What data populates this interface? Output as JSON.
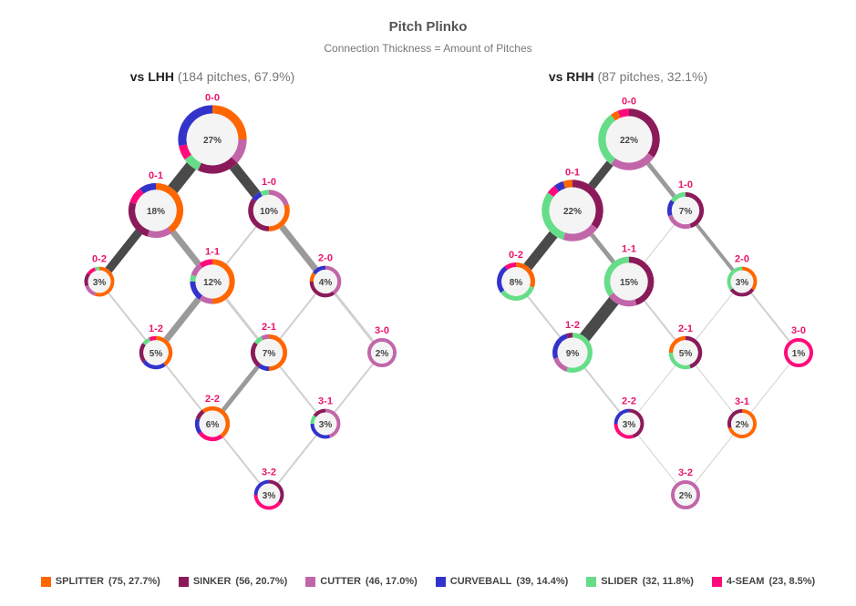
{
  "chart_data": {
    "type": "plinko-network",
    "title": "Pitch Plinko",
    "subtitle": "Connection Thickness = Amount of Pitches",
    "pitch_types": [
      {
        "name": "SPLITTER",
        "color": "#ff6600",
        "stat": "(75, 27.7%)"
      },
      {
        "name": "SINKER",
        "color": "#8b1a5a",
        "stat": "(56, 20.7%)"
      },
      {
        "name": "CUTTER",
        "color": "#c266aa",
        "stat": "(46, 17.0%)"
      },
      {
        "name": "CURVEBALL",
        "color": "#3333cc",
        "stat": "(39, 14.4%)"
      },
      {
        "name": "SLIDER",
        "color": "#66dd88",
        "stat": "(32, 11.8%)"
      },
      {
        "name": "4-SEAM",
        "color": "#ff0a7a",
        "stat": "(23, 8.5%)"
      }
    ],
    "panels": [
      {
        "label": "vs LHH",
        "detail": "(184 pitches, 67.9%)",
        "nodes": [
          {
            "count": "0-0",
            "pct": 27,
            "label": "27%",
            "mix": {
              "SPLITTER": 25,
              "CUTTER": 12,
              "SINKER": 20,
              "SLIDER": 8,
              "4-SEAM": 7,
              "CURVEBALL": 28
            }
          },
          {
            "count": "0-1",
            "pct": 18,
            "label": "18%",
            "mix": {
              "SPLITTER": 40,
              "CUTTER": 15,
              "SINKER": 25,
              "4-SEAM": 10,
              "CURVEBALL": 10
            }
          },
          {
            "count": "1-0",
            "pct": 10,
            "label": "10%",
            "mix": {
              "CUTTER": 20,
              "SPLITTER": 30,
              "SINKER": 35,
              "CURVEBALL": 8,
              "SLIDER": 7
            }
          },
          {
            "count": "0-2",
            "pct": 3,
            "label": "3%",
            "mix": {
              "SPLITTER": 55,
              "CUTTER": 15,
              "SINKER": 15,
              "4-SEAM": 10,
              "SLIDER": 5
            }
          },
          {
            "count": "1-1",
            "pct": 12,
            "label": "12%",
            "mix": {
              "SPLITTER": 50,
              "CUTTER": 10,
              "CURVEBALL": 15,
              "SLIDER": 5,
              "CUTTER2": 10,
              "4-SEAM": 10
            }
          },
          {
            "count": "2-0",
            "pct": 4,
            "label": "4%",
            "mix": {
              "CUTTER": 40,
              "SINKER": 35,
              "SPLITTER": 10,
              "CURVEBALL": 15
            }
          },
          {
            "count": "1-2",
            "pct": 5,
            "label": "5%",
            "mix": {
              "SPLITTER": 40,
              "CURVEBALL": 25,
              "SINKER": 20,
              "SLIDER": 8,
              "4-SEAM": 7
            }
          },
          {
            "count": "2-1",
            "pct": 7,
            "label": "7%",
            "mix": {
              "SPLITTER": 50,
              "CURVEBALL": 10,
              "SINKER": 25,
              "SLIDER": 8,
              "CUTTER": 7
            }
          },
          {
            "count": "3-0",
            "pct": 2,
            "label": "2%",
            "mix": {
              "CUTTER": 100
            }
          },
          {
            "count": "2-2",
            "pct": 6,
            "label": "6%",
            "mix": {
              "SPLITTER": 40,
              "4-SEAM": 25,
              "CURVEBALL": 15,
              "SINKER": 10,
              "SPLITTER2": 10
            }
          },
          {
            "count": "3-1",
            "pct": 3,
            "label": "3%",
            "mix": {
              "CUTTER": 45,
              "CURVEBALL": 30,
              "SLIDER": 10,
              "SINKER": 15
            }
          },
          {
            "count": "3-2",
            "pct": 3,
            "label": "3%",
            "mix": {
              "SINKER": 35,
              "4-SEAM": 40,
              "CURVEBALL": 25
            }
          }
        ],
        "links": [
          {
            "from": "0-0",
            "to": "0-1",
            "weight": 13
          },
          {
            "from": "0-0",
            "to": "1-0",
            "weight": 11
          },
          {
            "from": "0-1",
            "to": "0-2",
            "weight": 9
          },
          {
            "from": "0-1",
            "to": "1-1",
            "weight": 7
          },
          {
            "from": "1-0",
            "to": "1-1",
            "weight": 2
          },
          {
            "from": "1-0",
            "to": "2-0",
            "weight": 7
          },
          {
            "from": "0-2",
            "to": "1-2",
            "weight": 2
          },
          {
            "from": "1-1",
            "to": "1-2",
            "weight": 7
          },
          {
            "from": "1-1",
            "to": "2-1",
            "weight": 3
          },
          {
            "from": "2-0",
            "to": "2-1",
            "weight": 2
          },
          {
            "from": "2-0",
            "to": "3-0",
            "weight": 3
          },
          {
            "from": "1-2",
            "to": "2-2",
            "weight": 2
          },
          {
            "from": "2-1",
            "to": "2-2",
            "weight": 5
          },
          {
            "from": "2-1",
            "to": "3-1",
            "weight": 2
          },
          {
            "from": "3-0",
            "to": "3-1",
            "weight": 2
          },
          {
            "from": "2-2",
            "to": "3-2",
            "weight": 2
          },
          {
            "from": "3-1",
            "to": "3-2",
            "weight": 2
          }
        ]
      },
      {
        "label": "vs RHH",
        "detail": "(87 pitches, 32.1%)",
        "nodes": [
          {
            "count": "0-0",
            "pct": 22,
            "label": "22%",
            "mix": {
              "SINKER": 35,
              "CUTTER": 25,
              "SLIDER": 30,
              "SPLITTER": 4,
              "4-SEAM": 6
            }
          },
          {
            "count": "0-1",
            "pct": 22,
            "label": "22%",
            "mix": {
              "SINKER": 35,
              "CUTTER": 20,
              "SLIDER": 30,
              "4-SEAM": 5,
              "CURVEBALL": 5,
              "SPLITTER": 5
            }
          },
          {
            "count": "1-0",
            "pct": 7,
            "label": "7%",
            "mix": {
              "SINKER": 45,
              "CUTTER": 25,
              "CURVEBALL": 15,
              "SLIDER": 15
            }
          },
          {
            "count": "0-2",
            "pct": 8,
            "label": "8%",
            "mix": {
              "SPLITTER": 30,
              "SLIDER": 35,
              "CURVEBALL": 25,
              "4-SEAM": 10
            }
          },
          {
            "count": "1-1",
            "pct": 15,
            "label": "15%",
            "mix": {
              "SINKER": 45,
              "CUTTER": 20,
              "SLIDER": 35
            }
          },
          {
            "count": "2-0",
            "pct": 3,
            "label": "3%",
            "mix": {
              "SPLITTER": 35,
              "SINKER": 30,
              "SLIDER": 35
            }
          },
          {
            "count": "1-2",
            "pct": 9,
            "label": "9%",
            "mix": {
              "SLIDER": 55,
              "CUTTER": 15,
              "CURVEBALL": 25,
              "SINKER": 5
            }
          },
          {
            "count": "2-1",
            "pct": 5,
            "label": "5%",
            "mix": {
              "SINKER": 45,
              "SLIDER": 30,
              "SPLITTER": 25
            }
          },
          {
            "count": "3-0",
            "pct": 1,
            "label": "1%",
            "mix": {
              "4-SEAM": 100
            }
          },
          {
            "count": "2-2",
            "pct": 3,
            "label": "3%",
            "mix": {
              "SINKER": 45,
              "4-SEAM": 30,
              "CURVEBALL": 25
            }
          },
          {
            "count": "3-1",
            "pct": 2,
            "label": "2%",
            "mix": {
              "SPLITTER": 70,
              "SINKER": 30
            }
          },
          {
            "count": "3-2",
            "pct": 2,
            "label": "2%",
            "mix": {
              "CUTTER": 100
            }
          }
        ],
        "links": [
          {
            "from": "0-0",
            "to": "0-1",
            "weight": 9
          },
          {
            "from": "0-0",
            "to": "1-0",
            "weight": 5
          },
          {
            "from": "0-1",
            "to": "0-2",
            "weight": 11
          },
          {
            "from": "0-1",
            "to": "1-1",
            "weight": 5
          },
          {
            "from": "1-0",
            "to": "1-1",
            "weight": 1
          },
          {
            "from": "1-0",
            "to": "2-0",
            "weight": 4
          },
          {
            "from": "0-2",
            "to": "1-2",
            "weight": 2
          },
          {
            "from": "1-1",
            "to": "1-2",
            "weight": 13
          },
          {
            "from": "1-1",
            "to": "2-1",
            "weight": 2
          },
          {
            "from": "2-0",
            "to": "2-1",
            "weight": 1
          },
          {
            "from": "2-0",
            "to": "3-0",
            "weight": 2
          },
          {
            "from": "1-2",
            "to": "2-2",
            "weight": 2
          },
          {
            "from": "2-1",
            "to": "2-2",
            "weight": 1
          },
          {
            "from": "2-1",
            "to": "3-1",
            "weight": 1
          },
          {
            "from": "3-0",
            "to": "3-1",
            "weight": 1
          },
          {
            "from": "2-2",
            "to": "3-2",
            "weight": 1
          },
          {
            "from": "3-1",
            "to": "3-2",
            "weight": 1
          }
        ]
      }
    ]
  }
}
